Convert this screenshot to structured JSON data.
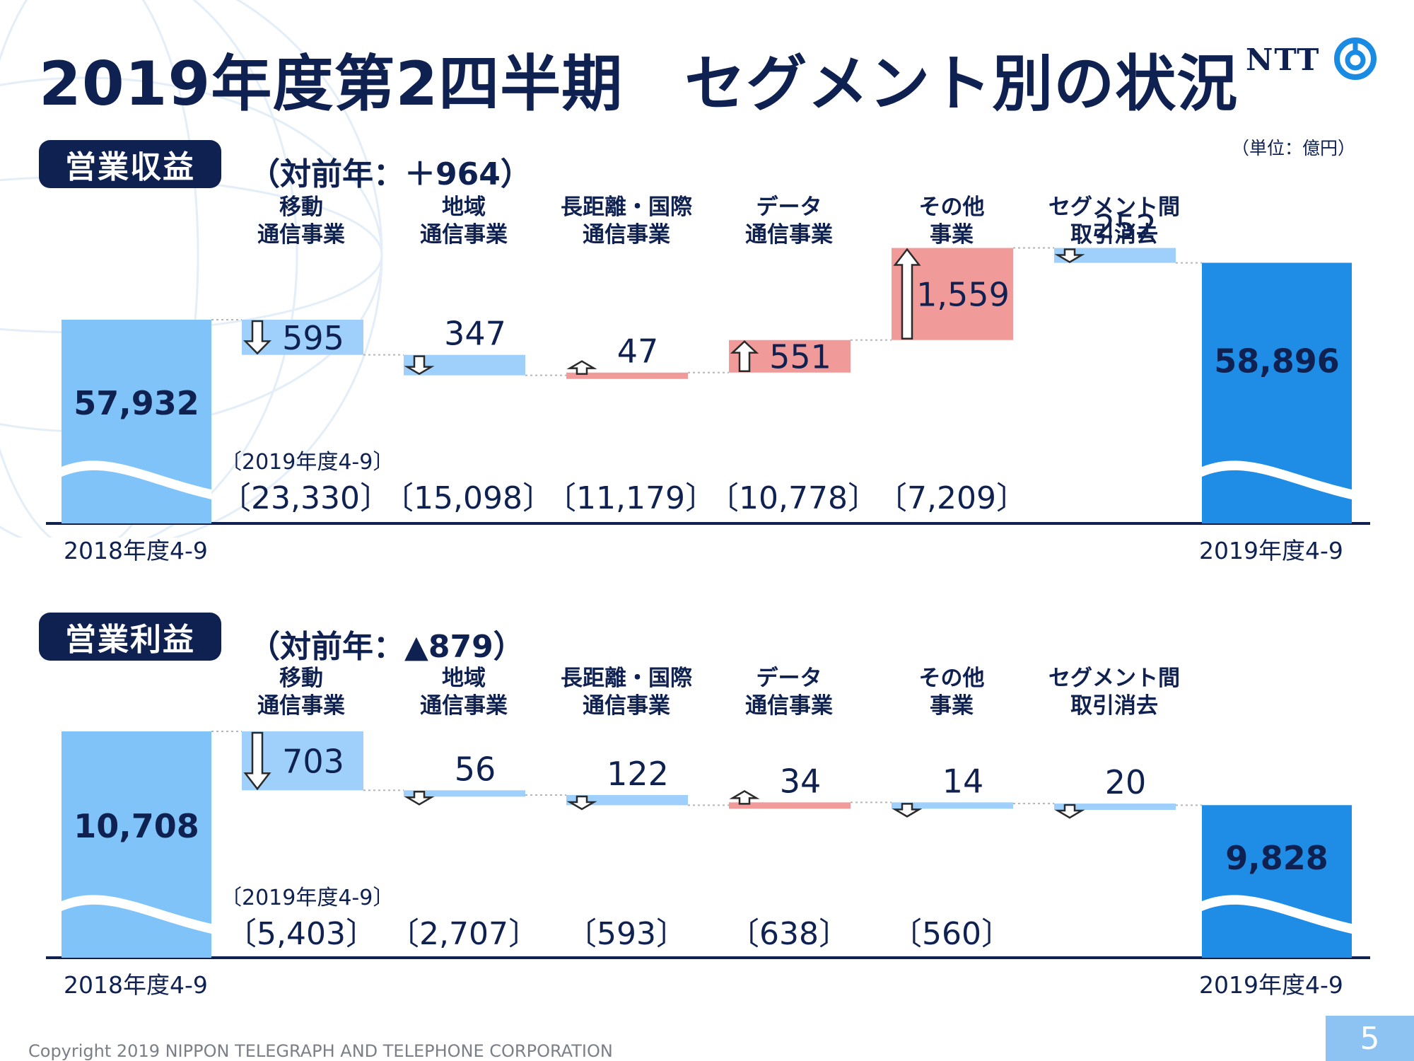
{
  "title": "2019年度第2四半期　セグメント別の状況",
  "logo_text": "NTT",
  "unit": "（単位：億円）",
  "colors": {
    "navy": "#0f2150",
    "start_bar": "#7fc3f8",
    "end_bar": "#1f8de6",
    "decrease": "#9fd0fb",
    "increase": "#f19a9a",
    "baseline": "#0f2150"
  },
  "sections": [
    {
      "label": "営業収益",
      "yoy": "（対前年：＋964）",
      "start_label": "2018年度4-9",
      "end_label": "2019年度4-9",
      "period_note": "〔2019年度4-9〕",
      "categories": [
        "移動\n通信事業",
        "地域\n通信事業",
        "長距離・国際\n通信事業",
        "データ\n通信事業",
        "その他\n事業",
        "セグメント間\n取引消去"
      ],
      "period_values": [
        "〔23,330〕",
        "〔15,098〕",
        "〔11,179〕",
        "〔10,778〕",
        "〔7,209〕",
        ""
      ]
    },
    {
      "label": "営業利益",
      "yoy": "（対前年：▲879）",
      "start_label": "2018年度4-9",
      "end_label": "2019年度4-9",
      "period_note": "〔2019年度4-9〕",
      "categories": [
        "移動\n通信事業",
        "地域\n通信事業",
        "長距離・国際\n通信事業",
        "データ\n通信事業",
        "その他\n事業",
        "セグメント間\n取引消去"
      ],
      "period_values": [
        "〔5,403〕",
        "〔2,707〕",
        "〔593〕",
        "〔638〕",
        "〔560〕",
        ""
      ]
    }
  ],
  "chart_data": [
    {
      "type": "bar",
      "subtype": "waterfall",
      "start": 57932,
      "end": 58896,
      "start_label_text": "57,932",
      "end_label_text": "58,896",
      "changes": [
        -595,
        -347,
        47,
        551,
        1559,
        -252
      ],
      "change_labels": [
        "595",
        "347",
        "47",
        "551",
        "1,559",
        "252"
      ],
      "axis_break": true
    },
    {
      "type": "bar",
      "subtype": "waterfall",
      "start": 10708,
      "end": 9828,
      "start_label_text": "10,708",
      "end_label_text": "9,828",
      "changes": [
        -703,
        -56,
        -122,
        34,
        -14,
        -20
      ],
      "change_labels": [
        "703",
        "56",
        "122",
        "34",
        "14",
        "20"
      ],
      "axis_break": true
    }
  ],
  "footer": {
    "copyright": "Copyright 2019 NIPPON TELEGRAPH AND TELEPHONE CORPORATION",
    "page": "5"
  }
}
